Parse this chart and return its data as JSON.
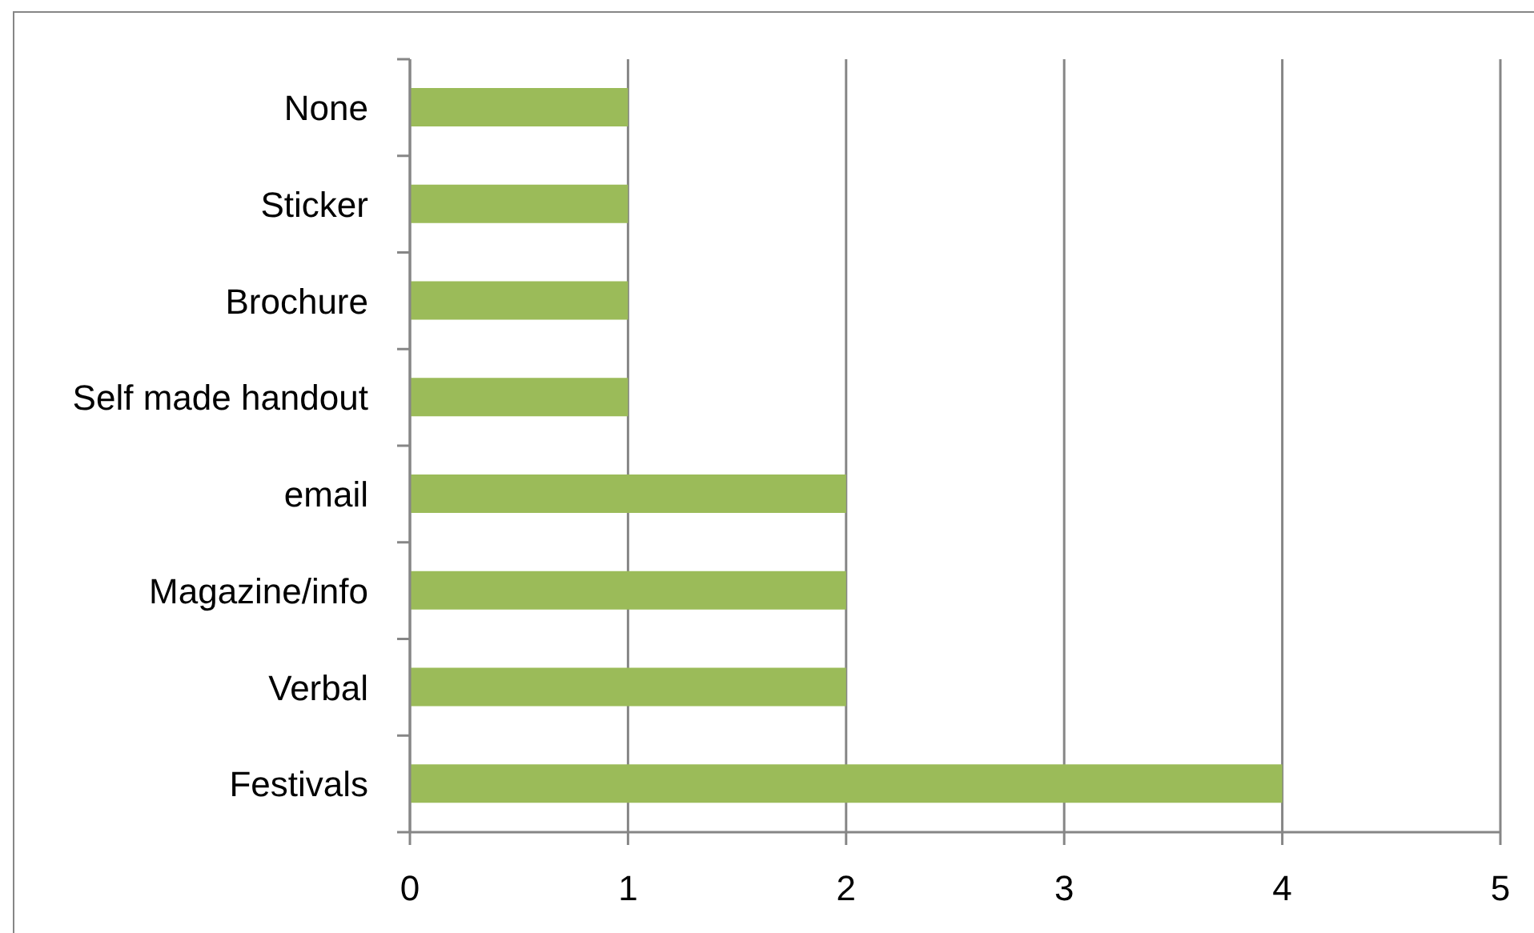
{
  "chart_data": {
    "type": "bar",
    "orientation": "horizontal",
    "categories": [
      "None",
      "Sticker",
      "Brochure",
      "Self made handout",
      "email",
      "Magazine/info",
      "Verbal",
      "Festivals"
    ],
    "values": [
      1,
      1,
      1,
      1,
      2,
      2,
      2,
      4
    ],
    "color": "#9bbb59",
    "xlim": [
      0,
      5
    ],
    "xticks": [
      0,
      1,
      2,
      3,
      4,
      5
    ],
    "grid": "x"
  }
}
